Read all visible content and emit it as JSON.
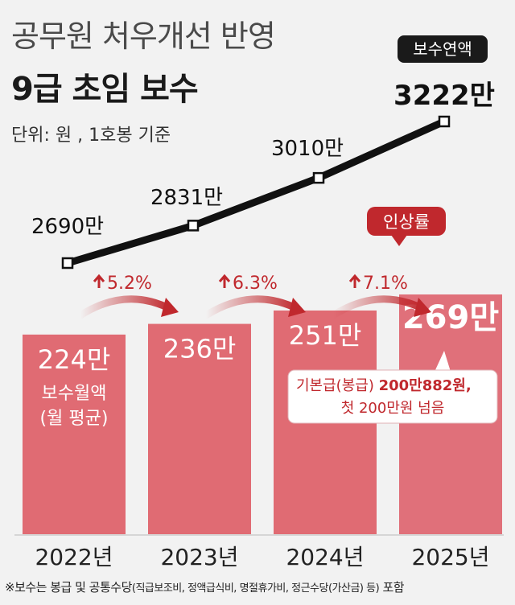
{
  "header": {
    "title": "공무원 처우개선 반영",
    "subtitle": "9급 초임 보수",
    "unit": "단위: 원 , 1호봉 기준"
  },
  "footnote": {
    "prefix": "※보수는 봉급 및 공통수당",
    "detail": "(직급보조비, 정액급식비, 명절휴가비, 정근수당(가산금) 등)",
    "suffix": " 포함"
  },
  "colors": {
    "bar": "#e06b73",
    "bar_highlight": "#e0707a",
    "line": "#111111",
    "arrow": "#c0282d",
    "badge_dark": "#1a1a1a",
    "badge_red": "#c0282d"
  },
  "chart_data": [
    {
      "type": "bar",
      "categories": [
        "2022년",
        "2023년",
        "2024년",
        "2025년"
      ],
      "series": [
        {
          "name": "보수월액",
          "values": [
            224,
            236,
            251,
            269
          ]
        }
      ],
      "value_labels": [
        "224만",
        "236만",
        "251만",
        "269만"
      ],
      "bar_note": [
        "보수월액",
        "(월 평균)"
      ],
      "growth_rates": [
        "5.2%",
        "6.3%",
        "7.1%"
      ],
      "growth_badge": "인상률",
      "callout": {
        "line1_normal": "기본급(봉급) ",
        "line1_bold": "200만882원,",
        "line2": "첫 200만원 넘음"
      },
      "ylim": [
        0,
        300
      ]
    },
    {
      "type": "line",
      "categories": [
        "2022년",
        "2023년",
        "2024년",
        "2025년"
      ],
      "series": [
        {
          "name": "보수연액",
          "values": [
            2690,
            2831,
            3010,
            3222
          ]
        }
      ],
      "value_labels": [
        "2690만",
        "2831만",
        "3010만",
        "3222만"
      ],
      "legend_badge": "보수연액"
    }
  ]
}
